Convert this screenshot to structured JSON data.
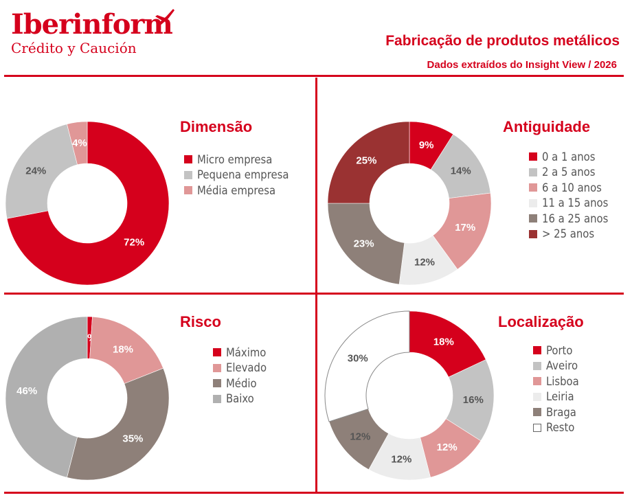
{
  "header": {
    "brand": "Iberinform",
    "brand_sub": "Crédito y Caución",
    "title": "Fabricação de produtos metálicos",
    "subtitle": "Dados extraídos do Insight View / 2026",
    "brand_color": "#d5001c"
  },
  "chart_data": [
    {
      "type": "pie",
      "title": "Dimensão",
      "categories": [
        "Micro empresa",
        "Pequena empresa",
        "Média empresa"
      ],
      "values": [
        72,
        24,
        4
      ],
      "labels": [
        "72%",
        "24%",
        "4%"
      ],
      "colors": [
        "#d5001c",
        "#c3c3c3",
        "#e09797"
      ],
      "label_colors": [
        "#ffffff",
        "#555555",
        "#ffffff"
      ],
      "legend_position": "right"
    },
    {
      "type": "pie",
      "title": "Antiguidade",
      "categories": [
        "0 a 1 anos",
        "2 a 5 anos",
        "6 a 10 anos",
        "11 a 15 anos",
        "16 a 25 anos",
        "> 25 anos"
      ],
      "values": [
        9,
        14,
        17,
        12,
        23,
        25
      ],
      "labels": [
        "9%",
        "14%",
        "17%",
        "12%",
        "23%",
        "25%"
      ],
      "colors": [
        "#d5001c",
        "#c3c3c3",
        "#e09797",
        "#ececec",
        "#8e8079",
        "#9a3232"
      ],
      "label_colors": [
        "#ffffff",
        "#555555",
        "#ffffff",
        "#555555",
        "#ffffff",
        "#ffffff"
      ],
      "legend_position": "right"
    },
    {
      "type": "pie",
      "title": "Risco",
      "categories": [
        "Máximo",
        "Elevado",
        "Médio",
        "Baixo"
      ],
      "values": [
        1,
        18,
        35,
        46
      ],
      "labels": [
        "1%",
        "18%",
        "35%",
        "46%"
      ],
      "colors": [
        "#d5001c",
        "#e09797",
        "#8e8079",
        "#b0b0b0"
      ],
      "label_colors": [
        "#ffffff",
        "#ffffff",
        "#ffffff",
        "#ffffff"
      ],
      "legend_position": "right"
    },
    {
      "type": "pie",
      "title": "Localização",
      "categories": [
        "Porto",
        "Aveiro",
        "Lisboa",
        "Leiria",
        "Braga",
        "Resto"
      ],
      "values": [
        18,
        16,
        12,
        12,
        12,
        30
      ],
      "labels": [
        "18%",
        "16%",
        "12%",
        "12%",
        "12%",
        "30%"
      ],
      "colors": [
        "#d5001c",
        "#c3c3c3",
        "#e09797",
        "#ececec",
        "#8e8079",
        "#ffffff"
      ],
      "label_colors": [
        "#ffffff",
        "#555555",
        "#ffffff",
        "#555555",
        "#555555",
        "#555555"
      ],
      "legend_position": "right"
    }
  ]
}
